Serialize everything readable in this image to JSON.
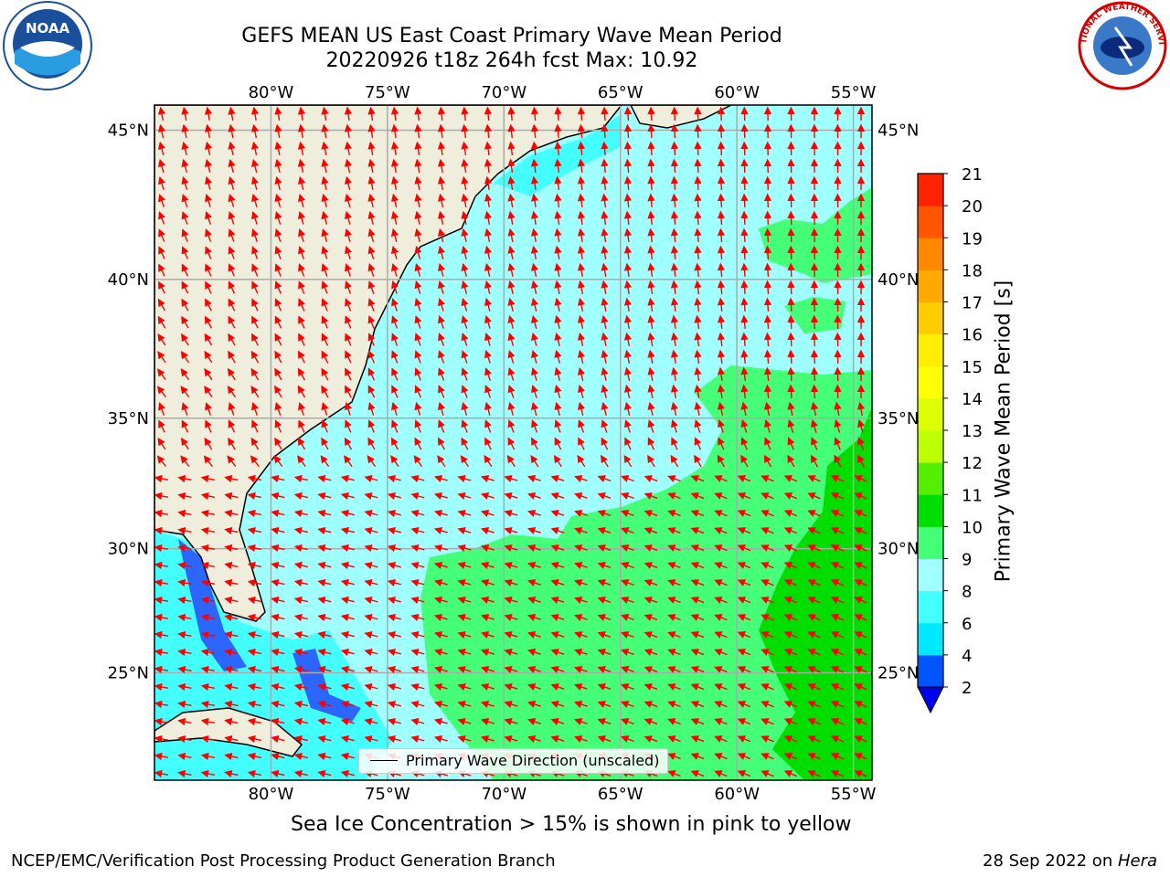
{
  "title": {
    "line1": "GEFS MEAN US East Coast Primary Wave Mean Period",
    "line2": "20220926 t18z 264h fcst   Max: 10.92"
  },
  "map": {
    "lon_labels": [
      "80°W",
      "75°W",
      "70°W",
      "65°W",
      "60°W",
      "55°W"
    ],
    "lon_values": [
      -80,
      -75,
      -70,
      -65,
      -60,
      -55
    ],
    "lat_labels": [
      "45°N",
      "40°N",
      "35°N",
      "30°N",
      "25°N"
    ],
    "lat_values": [
      45,
      40,
      35,
      30,
      25
    ],
    "extent": {
      "lon_min": -85,
      "lon_max": -54.2,
      "lat_min": 20.5,
      "lat_max": 45.8
    },
    "land_color": "#efeedc",
    "legend_text": "Primary Wave Direction (unscaled)",
    "arrow_color": "#ff0000"
  },
  "colorbar": {
    "label": "Primary Wave Mean Period [s]",
    "ticks": [
      "2",
      "4",
      "6",
      "8",
      "9",
      "10",
      "11",
      "12",
      "13",
      "14",
      "15",
      "16",
      "17",
      "18",
      "19",
      "20",
      "21"
    ],
    "colors": [
      "#0055ff",
      "#00e8ff",
      "#44ffff",
      "#a0ffff",
      "#44ff77",
      "#00dd00",
      "#55ee00",
      "#bbff00",
      "#ddff00",
      "#ffff00",
      "#ffee00",
      "#ffcc00",
      "#ffaa00",
      "#ff8800",
      "#ff5500",
      "#ff2200"
    ],
    "extend_color": "#0000ee"
  },
  "footer": {
    "ice_note": "Sea Ice Concentration > 15% is shown in pink to yellow",
    "credit": "NCEP/EMC/Verification Post Processing Product Generation Branch",
    "date_prefix": "28 Sep 2022 on ",
    "date_machine": "Hera"
  },
  "logos": {
    "left": "NOAA",
    "right_text": "NATIONAL WEATHER SERVICE"
  }
}
